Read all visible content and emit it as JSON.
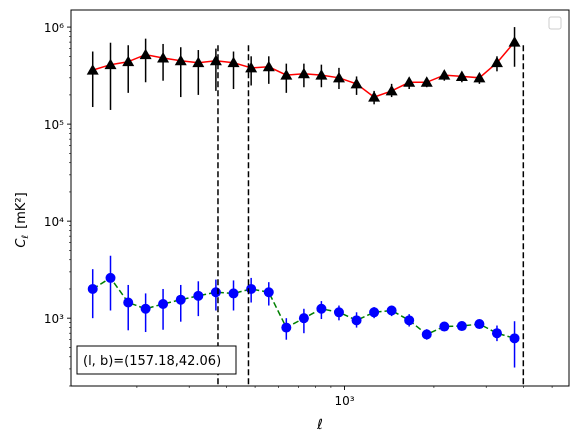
{
  "chart_data": {
    "type": "scatter",
    "title": "",
    "xlabel": "ℓ",
    "ylabel_main": "C",
    "ylabel_sub": "ℓ",
    "ylabel_unit": "[mK²]",
    "xscale": "log",
    "yscale": "log",
    "xlim": [
      120,
      5700
    ],
    "ylim": [
      200,
      1500000
    ],
    "x_major_ticks": [
      {
        "value": 1000,
        "label": "10³"
      }
    ],
    "y_major_ticks": [
      {
        "value": 1000,
        "label": "10³"
      },
      {
        "value": 10000,
        "label": "10⁴"
      },
      {
        "value": 100000,
        "label": "10⁵"
      },
      {
        "value": 1000000,
        "label": "10⁶"
      }
    ],
    "vlines": [
      375,
      475,
      4000
    ],
    "annotation": "(l, b)=(157.18,42.06)",
    "legend": "top-right, empty",
    "x": [
      142,
      163,
      187,
      214,
      245,
      281,
      322,
      369,
      423,
      485,
      556,
      637,
      730,
      836,
      958,
      1098,
      1258,
      1441,
      1651,
      1892,
      2168,
      2484,
      2846,
      3261,
      3737,
      4282,
      4906
    ],
    "series": [
      {
        "marker": "triangle",
        "line": "solid",
        "color": "#ff0000",
        "marker_color": "#000000",
        "values": [
          360000,
          410000,
          440000,
          520000,
          480000,
          450000,
          430000,
          450000,
          430000,
          380000,
          390000,
          320000,
          330000,
          320000,
          300000,
          260000,
          190000,
          220000,
          270000,
          270000,
          320000,
          310000,
          300000,
          430000,
          700000
        ],
        "x_index_start": 0,
        "err_low": [
          150000,
          140000,
          210000,
          270000,
          280000,
          190000,
          200000,
          220000,
          230000,
          250000,
          260000,
          210000,
          240000,
          240000,
          230000,
          200000,
          160000,
          190000,
          230000,
          240000,
          280000,
          270000,
          260000,
          350000,
          390000
        ],
        "err_high": [
          560000,
          690000,
          650000,
          760000,
          670000,
          620000,
          580000,
          600000,
          560000,
          500000,
          500000,
          420000,
          420000,
          410000,
          380000,
          310000,
          220000,
          260000,
          300000,
          300000,
          350000,
          340000,
          330000,
          500000,
          1000000
        ]
      },
      {
        "marker": "circle",
        "line": "dashed",
        "color": "#008000",
        "marker_color": "#0000ff",
        "values": [
          2000,
          2600,
          1450,
          1250,
          1400,
          1550,
          1700,
          1850,
          1800,
          2000,
          1850,
          800,
          1000,
          1250,
          1150,
          950,
          1150,
          1200,
          950,
          680,
          820,
          830,
          870,
          700,
          620
        ],
        "x_index_start": 0,
        "err_low": [
          1000,
          1200,
          750,
          720,
          760,
          920,
          1050,
          1200,
          1200,
          1450,
          1350,
          600,
          700,
          980,
          950,
          800,
          1000,
          1050,
          820,
          600,
          780,
          790,
          820,
          580,
          310
        ],
        "err_high": [
          3200,
          4400,
          2200,
          1800,
          2000,
          2200,
          2400,
          2500,
          2450,
          2600,
          2350,
          1000,
          1250,
          1500,
          1350,
          1150,
          1300,
          1350,
          1100,
          770,
          880,
          880,
          920,
          840,
          930
        ]
      }
    ]
  }
}
